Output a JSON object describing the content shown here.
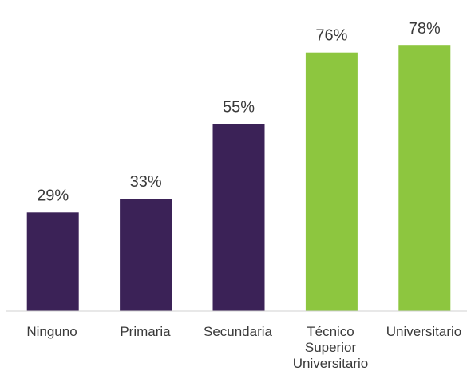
{
  "chart_data": {
    "type": "bar",
    "categories": [
      "Ninguno",
      "Primaria",
      "Secundaria",
      "Técnico\nSuperior\nUniversitario",
      "Universitario"
    ],
    "values": [
      29,
      33,
      55,
      76,
      78
    ],
    "value_labels": [
      "29%",
      "33%",
      "55%",
      "76%",
      "78%"
    ],
    "bar_colors": [
      "#3b2257",
      "#3b2257",
      "#3b2257",
      "#8dc63f",
      "#8dc63f"
    ],
    "title": "",
    "xlabel": "",
    "ylabel": "",
    "ylim": [
      0,
      100
    ],
    "grid": false,
    "legend": "none"
  }
}
